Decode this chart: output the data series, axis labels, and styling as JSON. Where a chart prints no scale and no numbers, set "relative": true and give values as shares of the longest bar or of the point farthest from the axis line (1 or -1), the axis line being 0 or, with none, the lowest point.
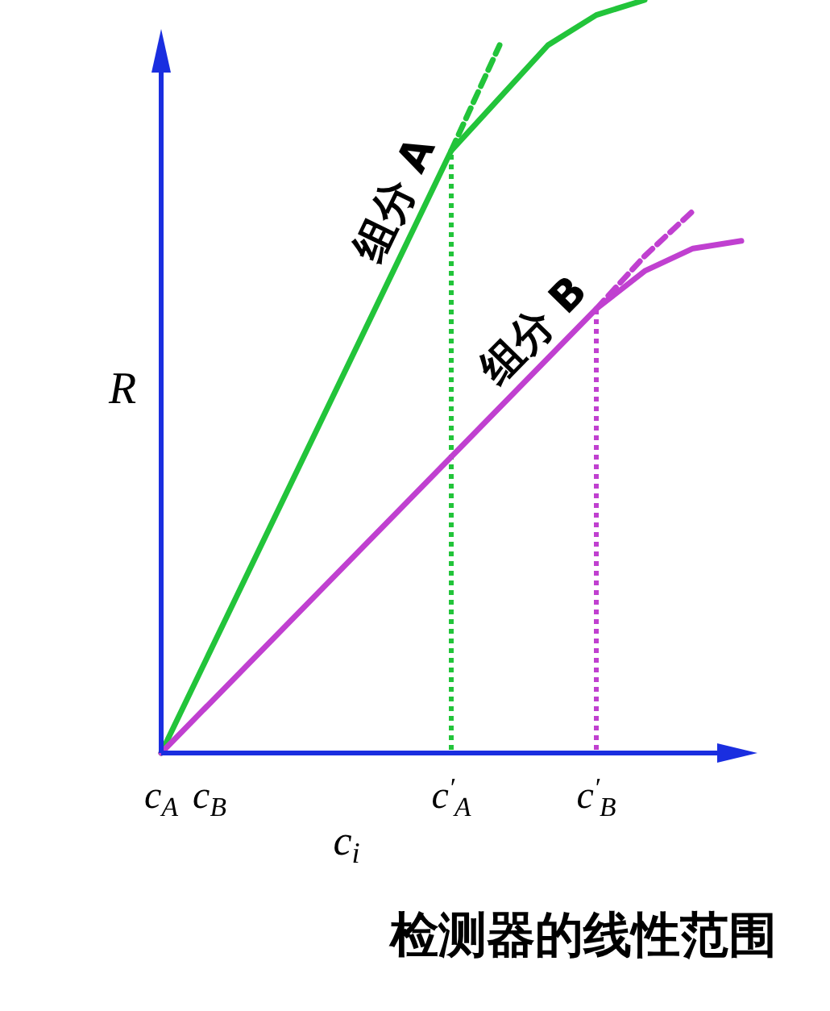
{
  "chart_data": {
    "type": "line",
    "title": "检测器的线性范围",
    "xlabel": "c$_{i}$",
    "ylabel": "R",
    "relative": true,
    "legend": false,
    "grid": false,
    "marker": "none",
    "categories": [
      "c$_{A}$",
      "c$_{B}$",
      null,
      null,
      null,
      null,
      "c$^{′}$$_{A}$",
      null,
      null,
      "c$^{′}$$_{B}$",
      null,
      null,
      null
    ],
    "series": [
      {
        "name": "组分 A",
        "color": "#22c43a",
        "line_style": "solid",
        "values": [
          0,
          null,
          null,
          null,
          null,
          null,
          0.8,
          0.87,
          0.94,
          0.98,
          1.0,
          null,
          null
        ]
      },
      {
        "color": "#22c43a",
        "line_style": "dashed",
        "values": [
          null,
          null,
          null,
          null,
          null,
          null,
          0.8,
          0.94,
          null,
          null,
          null,
          null,
          null
        ]
      },
      {
        "type": "bar",
        "color": "#22c43a",
        "line_style": "dotted",
        "values": [
          null,
          null,
          null,
          null,
          null,
          null,
          0.8,
          null,
          null,
          null,
          null,
          null,
          null
        ]
      },
      {
        "name": "组分 B",
        "color": "#c040d0",
        "line_style": "solid",
        "values": [
          0,
          null,
          null,
          null,
          null,
          null,
          null,
          null,
          null,
          0.59,
          0.64,
          0.67,
          0.68
        ]
      },
      {
        "color": "#c040d0",
        "line_style": "dashed",
        "values": [
          null,
          null,
          null,
          null,
          null,
          null,
          null,
          null,
          null,
          0.59,
          0.66,
          0.72,
          null
        ]
      },
      {
        "type": "bar",
        "color": "#c040d0",
        "line_style": "dotted",
        "values": [
          null,
          null,
          null,
          null,
          null,
          null,
          null,
          null,
          null,
          0.59,
          null,
          null,
          null
        ]
      }
    ]
  }
}
